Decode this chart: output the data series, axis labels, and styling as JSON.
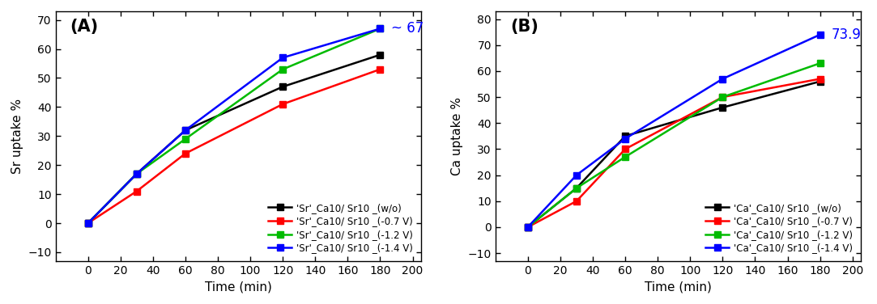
{
  "time": [
    0,
    30,
    60,
    120,
    180
  ],
  "Sr_wo": [
    0,
    17,
    32,
    47,
    58
  ],
  "Sr_07": [
    0,
    11,
    24,
    41,
    53
  ],
  "Sr_12": [
    0,
    17,
    29,
    53,
    67
  ],
  "Sr_14": [
    0,
    17,
    32,
    57,
    67
  ],
  "Ca_wo": [
    0,
    15,
    35,
    46,
    56
  ],
  "Ca_07": [
    0,
    10,
    30,
    50,
    57
  ],
  "Ca_12": [
    0,
    15,
    27,
    50,
    63
  ],
  "Ca_14": [
    0,
    20,
    34,
    57,
    74
  ],
  "colors": {
    "wo": "#000000",
    "07": "#ff0000",
    "12": "#00bb00",
    "14": "#0000ff"
  },
  "Sr_labels": [
    "'Sr'_Ca10/ Sr10 _(w/o)",
    "'Sr'_Ca10/ Sr10 _(-0.7 V)",
    "'Sr'_Ca10/ Sr10 _(-1.2 V)",
    "'Sr'_Ca10/ Sr10 _(-1.4 V)"
  ],
  "Ca_labels": [
    "'Ca'_Ca10/ Sr10 _(w/o)",
    "'Ca'_Ca10/ Sr10 _(-0.7 V)",
    "'Ca'_Ca10/ Sr10 _(-1.2 V)",
    "'Ca'_Ca10/ Sr10 _(-1.4 V)"
  ],
  "Sr_annotation": "~ 67",
  "Ca_annotation": "73.9",
  "annotation_color": "#0000ff",
  "xlabel": "Time (min)",
  "Sr_ylabel": "Sr uptake %",
  "Ca_ylabel": "Ca uptake %",
  "A_xlim": [
    -20,
    205
  ],
  "A_ylim": [
    -13,
    73
  ],
  "B_xlim": [
    -20,
    205
  ],
  "B_ylim": [
    -13,
    83
  ],
  "panel_A": "(A)",
  "panel_B": "(B)",
  "A_xticks": [
    0,
    20,
    40,
    60,
    80,
    100,
    120,
    140,
    160,
    180,
    200
  ],
  "A_yticks": [
    -10,
    0,
    10,
    20,
    30,
    40,
    50,
    60,
    70
  ],
  "B_xticks": [
    0,
    20,
    40,
    60,
    80,
    100,
    120,
    140,
    160,
    180,
    200
  ],
  "B_yticks": [
    -10,
    0,
    10,
    20,
    30,
    40,
    50,
    60,
    70,
    80
  ],
  "marker": "s",
  "markersize": 6,
  "linewidth": 1.8,
  "legend_fontsize": 8.5,
  "label_fontsize": 11,
  "tick_fontsize": 10,
  "panel_fontsize": 15,
  "annotation_fontsize": 12
}
